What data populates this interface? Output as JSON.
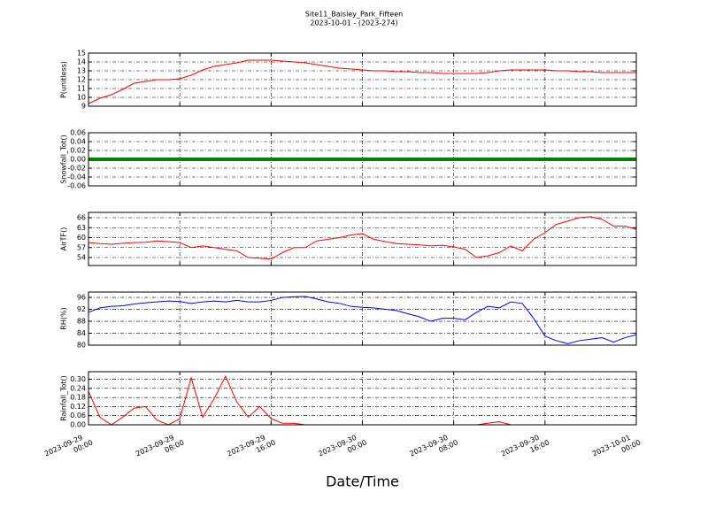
{
  "title": "Site11_Baisley_Park_Fifteen",
  "subtitle": "2023-10-01 - (2023-274)",
  "chart_data": [
    {
      "type": "line",
      "ylabel": "P(unitless)",
      "x": [
        "2023-09-29 00:00",
        "2023-09-29 01:00",
        "2023-09-29 02:00",
        "2023-09-29 03:00",
        "2023-09-29 04:00",
        "2023-09-29 05:00",
        "2023-09-29 06:00",
        "2023-09-29 07:00",
        "2023-09-29 08:00",
        "2023-09-29 09:00",
        "2023-09-29 10:00",
        "2023-09-29 11:00",
        "2023-09-29 12:00",
        "2023-09-29 13:00",
        "2023-09-29 14:00",
        "2023-09-29 15:00",
        "2023-09-29 16:00",
        "2023-09-29 17:00",
        "2023-09-29 18:00",
        "2023-09-29 19:00",
        "2023-09-29 20:00",
        "2023-09-29 21:00",
        "2023-09-29 22:00",
        "2023-09-29 23:00",
        "2023-09-30 00:00",
        "2023-09-30 01:00",
        "2023-09-30 02:00",
        "2023-09-30 03:00",
        "2023-09-30 04:00",
        "2023-09-30 05:00",
        "2023-09-30 06:00",
        "2023-09-30 07:00",
        "2023-09-30 08:00",
        "2023-09-30 09:00",
        "2023-09-30 10:00",
        "2023-09-30 11:00",
        "2023-09-30 12:00",
        "2023-09-30 13:00",
        "2023-09-30 14:00",
        "2023-09-30 15:00",
        "2023-09-30 16:00",
        "2023-09-30 17:00",
        "2023-09-30 18:00",
        "2023-09-30 19:00",
        "2023-09-30 20:00",
        "2023-09-30 21:00",
        "2023-09-30 22:00",
        "2023-09-30 23:00",
        "2023-10-01 00:00"
      ],
      "series": [
        {
          "color": "#ff0000",
          "values": [
            9.3,
            9.9,
            10.3,
            10.9,
            11.6,
            11.8,
            12.0,
            12.0,
            12.1,
            12.5,
            13.1,
            13.5,
            13.7,
            13.9,
            14.2,
            14.2,
            14.2,
            14.1,
            14.0,
            13.9,
            13.7,
            13.5,
            13.3,
            13.2,
            13.1,
            13.0,
            13.0,
            12.9,
            12.9,
            12.8,
            12.8,
            12.7,
            12.7,
            12.7,
            12.7,
            12.8,
            13.0,
            13.1,
            13.1,
            13.1,
            13.1,
            13.0,
            13.0,
            12.9,
            12.9,
            12.8,
            12.8,
            12.8,
            12.8
          ]
        }
      ],
      "xlim": [
        "2023-09-29 00:00",
        "2023-10-01 00:00"
      ],
      "xticks": [
        "2023-09-29 00:00",
        "2023-09-29 08:00",
        "2023-09-29 16:00",
        "2023-09-30 00:00",
        "2023-09-30 08:00",
        "2023-09-30 16:00",
        "2023-10-01 00:00"
      ],
      "ylim": [
        9,
        15
      ],
      "yticks": [
        9,
        10,
        11,
        12,
        13,
        14,
        15
      ],
      "grid": true
    },
    {
      "type": "line",
      "ylabel": "Snowfall_Tot()",
      "x": [
        "2023-09-29 00:00",
        "2023-09-29 01:00",
        "2023-09-29 02:00",
        "2023-09-29 03:00",
        "2023-09-29 04:00",
        "2023-09-29 05:00",
        "2023-09-29 06:00",
        "2023-09-29 07:00",
        "2023-09-29 08:00",
        "2023-09-29 09:00",
        "2023-09-29 10:00",
        "2023-09-29 11:00",
        "2023-09-29 12:00",
        "2023-09-29 13:00",
        "2023-09-29 14:00",
        "2023-09-29 15:00",
        "2023-09-29 16:00",
        "2023-09-29 17:00",
        "2023-09-29 18:00",
        "2023-09-29 19:00",
        "2023-09-29 20:00",
        "2023-09-29 21:00",
        "2023-09-29 22:00",
        "2023-09-29 23:00",
        "2023-09-30 00:00",
        "2023-09-30 01:00",
        "2023-09-30 02:00",
        "2023-09-30 03:00",
        "2023-09-30 04:00",
        "2023-09-30 05:00",
        "2023-09-30 06:00",
        "2023-09-30 07:00",
        "2023-09-30 08:00",
        "2023-09-30 09:00",
        "2023-09-30 10:00",
        "2023-09-30 11:00",
        "2023-09-30 12:00",
        "2023-09-30 13:00",
        "2023-09-30 14:00",
        "2023-09-30 15:00",
        "2023-09-30 16:00",
        "2023-09-30 17:00",
        "2023-09-30 18:00",
        "2023-09-30 19:00",
        "2023-09-30 20:00",
        "2023-09-30 21:00",
        "2023-09-30 22:00",
        "2023-09-30 23:00",
        "2023-10-01 00:00"
      ],
      "series": [
        {
          "color": "#008000",
          "values": [
            0,
            0,
            0,
            0,
            0,
            0,
            0,
            0,
            0,
            0,
            0,
            0,
            0,
            0,
            0,
            0,
            0,
            0,
            0,
            0,
            0,
            0,
            0,
            0,
            0,
            0,
            0,
            0,
            0,
            0,
            0,
            0,
            0,
            0,
            0,
            0,
            0,
            0,
            0,
            0,
            0,
            0,
            0,
            0,
            0,
            0,
            0,
            0,
            0
          ]
        }
      ],
      "xlim": [
        "2023-09-29 00:00",
        "2023-10-01 00:00"
      ],
      "xticks": [
        "2023-09-29 00:00",
        "2023-09-29 08:00",
        "2023-09-29 16:00",
        "2023-09-30 00:00",
        "2023-09-30 08:00",
        "2023-09-30 16:00",
        "2023-10-01 00:00"
      ],
      "ylim": [
        -0.06,
        0.06
      ],
      "yticks": [
        -0.06,
        -0.04,
        -0.02,
        {
          "value": 0,
          "label": "0.00"
        },
        0.02,
        0.04,
        0.06
      ],
      "grid": true
    },
    {
      "type": "line",
      "ylabel": "AirTF()",
      "x": [
        "2023-09-29 00:00",
        "2023-09-29 01:00",
        "2023-09-29 02:00",
        "2023-09-29 03:00",
        "2023-09-29 04:00",
        "2023-09-29 05:00",
        "2023-09-29 06:00",
        "2023-09-29 07:00",
        "2023-09-29 08:00",
        "2023-09-29 09:00",
        "2023-09-29 10:00",
        "2023-09-29 11:00",
        "2023-09-29 12:00",
        "2023-09-29 13:00",
        "2023-09-29 14:00",
        "2023-09-29 15:00",
        "2023-09-29 16:00",
        "2023-09-29 17:00",
        "2023-09-29 18:00",
        "2023-09-29 19:00",
        "2023-09-29 20:00",
        "2023-09-29 21:00",
        "2023-09-29 22:00",
        "2023-09-29 23:00",
        "2023-09-30 00:00",
        "2023-09-30 01:00",
        "2023-09-30 02:00",
        "2023-09-30 03:00",
        "2023-09-30 04:00",
        "2023-09-30 05:00",
        "2023-09-30 06:00",
        "2023-09-30 07:00",
        "2023-09-30 08:00",
        "2023-09-30 09:00",
        "2023-09-30 10:00",
        "2023-09-30 11:00",
        "2023-09-30 12:00",
        "2023-09-30 13:00",
        "2023-09-30 14:00",
        "2023-09-30 15:00",
        "2023-09-30 16:00",
        "2023-09-30 17:00",
        "2023-09-30 18:00",
        "2023-09-30 19:00",
        "2023-09-30 20:00",
        "2023-09-30 21:00",
        "2023-09-30 22:00",
        "2023-09-30 23:00",
        "2023-10-01 00:00"
      ],
      "series": [
        {
          "color": "#ff0000",
          "values": [
            58.5,
            58.2,
            58.0,
            58.3,
            58.5,
            58.6,
            59.0,
            58.8,
            58.5,
            57.0,
            57.5,
            57.0,
            56.5,
            56.0,
            54.0,
            53.8,
            53.5,
            55.5,
            57.0,
            57.0,
            59.0,
            59.5,
            60.0,
            60.8,
            61.2,
            59.5,
            58.8,
            58.2,
            58.0,
            57.8,
            57.5,
            57.7,
            57.2,
            56.5,
            54.0,
            54.5,
            55.5,
            57.5,
            56.0,
            59.5,
            61.5,
            64.0,
            65.0,
            66.0,
            66.3,
            65.5,
            63.5,
            63.5,
            62.5
          ]
        }
      ],
      "xlim": [
        "2023-09-29 00:00",
        "2023-10-01 00:00"
      ],
      "xticks": [
        "2023-09-29 00:00",
        "2023-09-29 08:00",
        "2023-09-29 16:00",
        "2023-09-30 00:00",
        "2023-09-30 08:00",
        "2023-09-30 16:00",
        "2023-10-01 00:00"
      ],
      "ylim": [
        51.6,
        67.6
      ],
      "yticks": [
        54,
        57,
        60,
        63,
        66
      ],
      "grid": true
    },
    {
      "type": "line",
      "ylabel": "RH(%)",
      "x": [
        "2023-09-29 00:00",
        "2023-09-29 01:00",
        "2023-09-29 02:00",
        "2023-09-29 03:00",
        "2023-09-29 04:00",
        "2023-09-29 05:00",
        "2023-09-29 06:00",
        "2023-09-29 07:00",
        "2023-09-29 08:00",
        "2023-09-29 09:00",
        "2023-09-29 10:00",
        "2023-09-29 11:00",
        "2023-09-29 12:00",
        "2023-09-29 13:00",
        "2023-09-29 14:00",
        "2023-09-29 15:00",
        "2023-09-29 16:00",
        "2023-09-29 17:00",
        "2023-09-29 18:00",
        "2023-09-29 19:00",
        "2023-09-29 20:00",
        "2023-09-29 21:00",
        "2023-09-29 22:00",
        "2023-09-29 23:00",
        "2023-09-30 00:00",
        "2023-09-30 01:00",
        "2023-09-30 02:00",
        "2023-09-30 03:00",
        "2023-09-30 04:00",
        "2023-09-30 05:00",
        "2023-09-30 06:00",
        "2023-09-30 07:00",
        "2023-09-30 08:00",
        "2023-09-30 09:00",
        "2023-09-30 10:00",
        "2023-09-30 11:00",
        "2023-09-30 12:00",
        "2023-09-30 13:00",
        "2023-09-30 14:00",
        "2023-09-30 15:00",
        "2023-09-30 16:00",
        "2023-09-30 17:00",
        "2023-09-30 18:00",
        "2023-09-30 19:00",
        "2023-09-30 20:00",
        "2023-09-30 21:00",
        "2023-09-30 22:00",
        "2023-09-30 23:00",
        "2023-10-01 00:00"
      ],
      "series": [
        {
          "color": "#0000ff",
          "values": [
            91,
            92.5,
            93,
            93.2,
            93.8,
            94.2,
            94.5,
            94.8,
            94.6,
            94.0,
            94.5,
            94.8,
            94.5,
            95.0,
            94.5,
            94.5,
            95.0,
            96.0,
            96.2,
            96.3,
            95.5,
            94.5,
            94.0,
            93.0,
            92.7,
            92.5,
            92.0,
            91.6,
            90.5,
            89.5,
            88.0,
            89.0,
            89.0,
            88.5,
            91.0,
            93.0,
            92.5,
            94.5,
            94.0,
            89.0,
            83.0,
            81.5,
            80.5,
            81.5,
            82.0,
            82.5,
            81.0,
            82.5,
            83.5
          ]
        }
      ],
      "xlim": [
        "2023-09-29 00:00",
        "2023-10-01 00:00"
      ],
      "xticks": [
        "2023-09-29 00:00",
        "2023-09-29 08:00",
        "2023-09-29 16:00",
        "2023-09-30 00:00",
        "2023-09-30 08:00",
        "2023-09-30 16:00",
        "2023-10-01 00:00"
      ],
      "ylim": [
        80,
        97.8
      ],
      "yticks": [
        80,
        84,
        88,
        92,
        96
      ],
      "grid": true
    },
    {
      "type": "line",
      "ylabel": "Rainfall_Tot()",
      "xlabel": "Date/Time",
      "x": [
        "2023-09-29 00:00",
        "2023-09-29 01:00",
        "2023-09-29 02:00",
        "2023-09-29 03:00",
        "2023-09-29 04:00",
        "2023-09-29 05:00",
        "2023-09-29 06:00",
        "2023-09-29 07:00",
        "2023-09-29 08:00",
        "2023-09-29 09:00",
        "2023-09-29 10:00",
        "2023-09-29 11:00",
        "2023-09-29 12:00",
        "2023-09-29 13:00",
        "2023-09-29 14:00",
        "2023-09-29 15:00",
        "2023-09-29 16:00",
        "2023-09-29 17:00",
        "2023-09-29 18:00",
        "2023-09-29 19:00",
        "2023-09-29 20:00",
        "2023-09-29 21:00",
        "2023-09-29 22:00",
        "2023-09-29 23:00",
        "2023-09-30 00:00",
        "2023-09-30 01:00",
        "2023-09-30 02:00",
        "2023-09-30 03:00",
        "2023-09-30 04:00",
        "2023-09-30 05:00",
        "2023-09-30 06:00",
        "2023-09-30 07:00",
        "2023-09-30 08:00",
        "2023-09-30 09:00",
        "2023-09-30 10:00",
        "2023-09-30 11:00",
        "2023-09-30 12:00",
        "2023-09-30 13:00",
        "2023-09-30 14:00",
        "2023-09-30 15:00",
        "2023-09-30 16:00",
        "2023-09-30 17:00",
        "2023-09-30 18:00",
        "2023-09-30 19:00",
        "2023-09-30 20:00",
        "2023-09-30 21:00",
        "2023-09-30 22:00",
        "2023-09-30 23:00",
        "2023-10-01 00:00"
      ],
      "series": [
        {
          "color": "#ff0000",
          "values": [
            0.22,
            0.05,
            0,
            0.05,
            0.11,
            0.12,
            0.03,
            0,
            0.04,
            0.31,
            0.05,
            0.17,
            0.32,
            0.15,
            0.05,
            0.12,
            0.04,
            0.01,
            0.01,
            0,
            0,
            0,
            0,
            0,
            0,
            0,
            0,
            0,
            0,
            0,
            0,
            0,
            0,
            0,
            0,
            0.01,
            0.02,
            0,
            0,
            0,
            0,
            0,
            0,
            0,
            0,
            0,
            0,
            0,
            0
          ]
        }
      ],
      "xlim": [
        "2023-09-29 00:00",
        "2023-10-01 00:00"
      ],
      "xticks": [
        "2023-09-29 00:00",
        "2023-09-29 08:00",
        "2023-09-29 16:00",
        "2023-09-30 00:00",
        "2023-09-30 08:00",
        "2023-09-30 16:00",
        "2023-10-01 00:00"
      ],
      "ylim": [
        0,
        0.35
      ],
      "yticks": [
        {
          "value": 0,
          "label": "0.00"
        },
        0.06,
        0.12,
        0.18,
        0.24,
        {
          "value": 0.3,
          "label": "0.30"
        }
      ],
      "grid": true
    }
  ]
}
